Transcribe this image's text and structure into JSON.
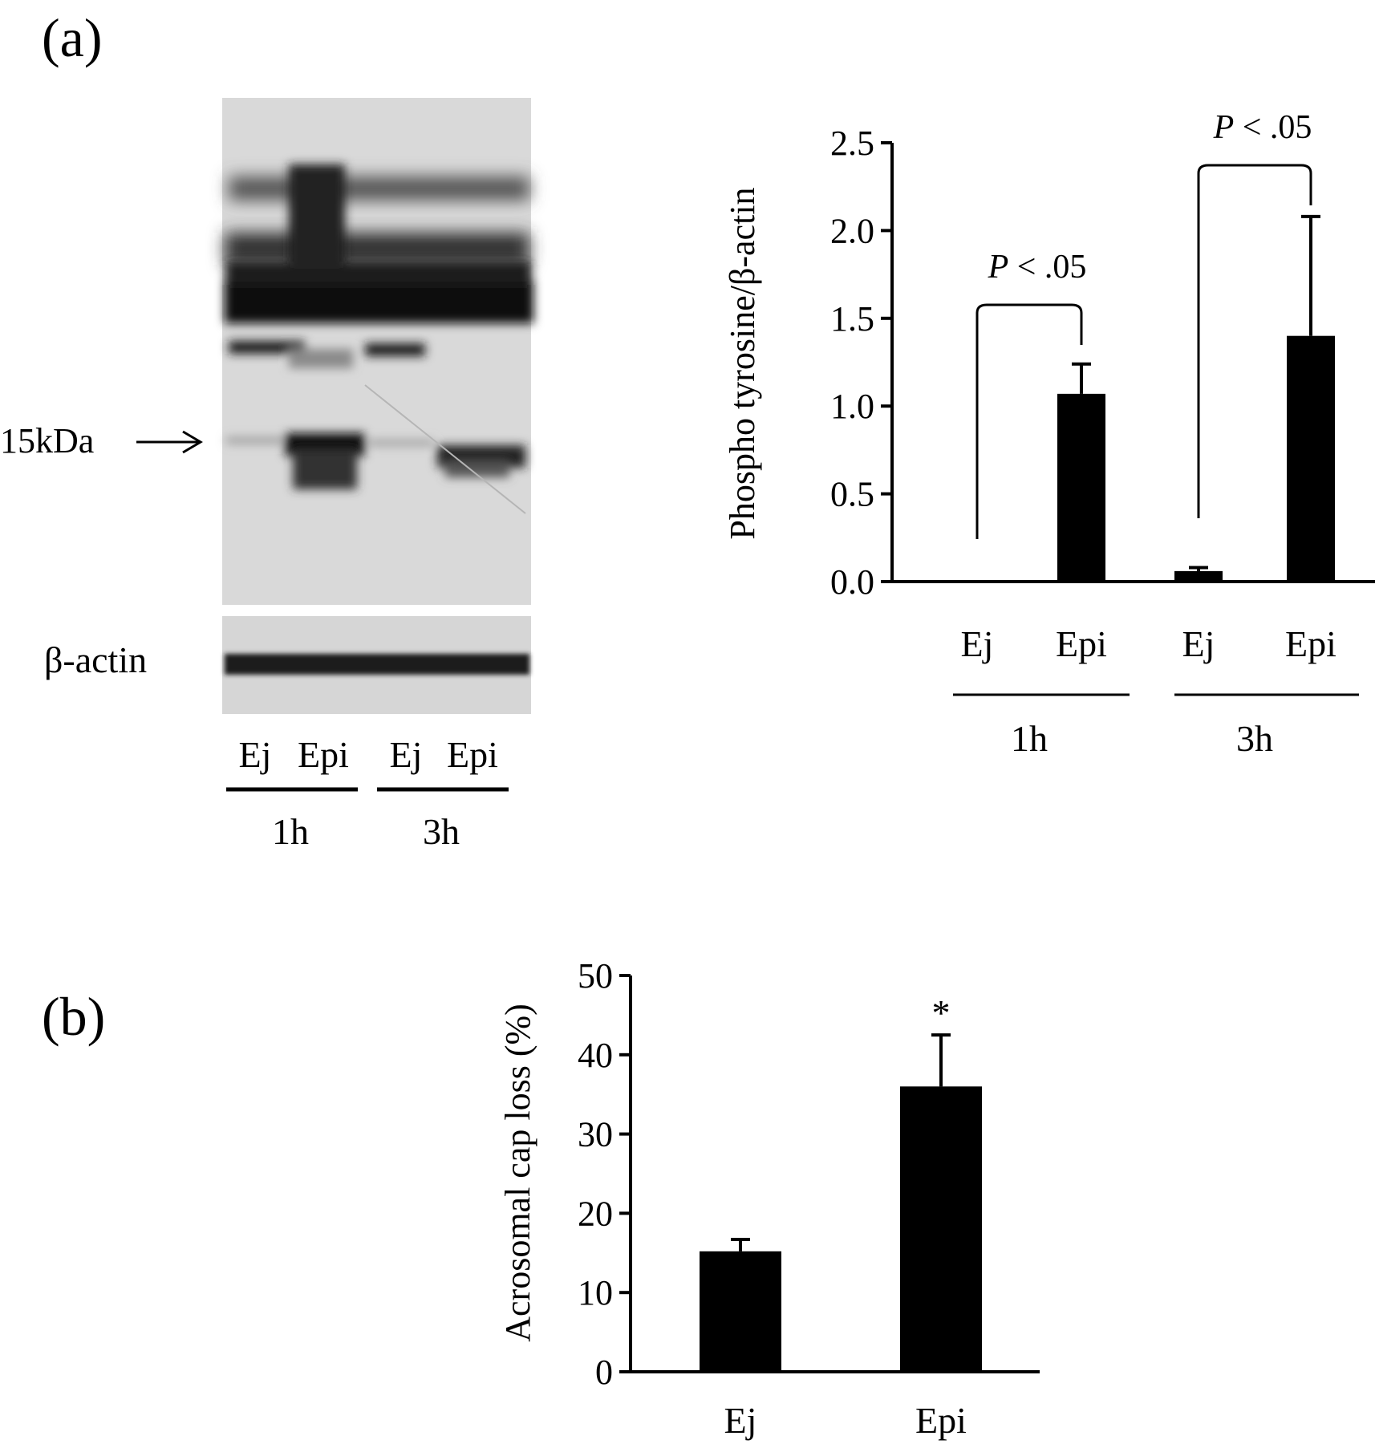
{
  "figure": {
    "panel_a_label": "(a)",
    "panel_b_label": "(b)"
  },
  "blot": {
    "band_marker": "15kDa",
    "loading_control": "β-actin",
    "lanes": [
      "Ej",
      "Epi",
      "Ej",
      "Epi"
    ],
    "groups": [
      "1h",
      "3h"
    ]
  },
  "chart_data": [
    {
      "type": "bar",
      "panel": "a",
      "ylabel": "Phospho tyrosine/β-actin",
      "ylim": [
        0,
        2.5
      ],
      "yticks": [
        "0.0",
        "0.5",
        "1.0",
        "1.5",
        "2.0",
        "2.5"
      ],
      "categories": [
        "Ej",
        "Epi",
        "Ej",
        "Epi"
      ],
      "groups": [
        {
          "label": "1h",
          "categories": [
            0,
            1
          ]
        },
        {
          "label": "3h",
          "categories": [
            2,
            3
          ]
        }
      ],
      "values": [
        0.0,
        1.07,
        0.06,
        1.4
      ],
      "errors": [
        0.0,
        0.17,
        0.02,
        0.68
      ],
      "annotations": [
        {
          "text_p": "P",
          "text_rest": " < .05",
          "from": 0,
          "to": 1
        },
        {
          "text_p": "P",
          "text_rest": " < .05",
          "from": 2,
          "to": 3
        }
      ],
      "grid": false,
      "bar_color": "#000000"
    },
    {
      "type": "bar",
      "panel": "b",
      "ylabel": "Acrosomal cap loss (%)",
      "ylim": [
        0,
        50
      ],
      "yticks": [
        "0",
        "10",
        "20",
        "30",
        "40",
        "50"
      ],
      "categories": [
        "Ej",
        "Epi"
      ],
      "values": [
        15.2,
        36.0
      ],
      "errors": [
        1.5,
        6.5
      ],
      "significance": [
        "",
        "*"
      ],
      "grid": false,
      "bar_color": "#000000"
    }
  ]
}
